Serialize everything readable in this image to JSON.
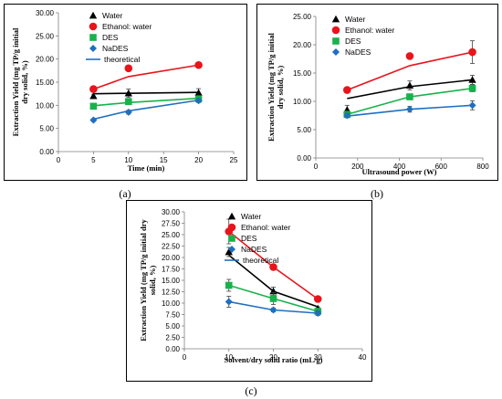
{
  "colors": {
    "water": "#000000",
    "ethanol": "#e8141b",
    "des": "#18b24b",
    "nades": "#1f6fbf",
    "theoretical": "#1f6fbf"
  },
  "chart_data": [
    {
      "type": "scatter",
      "panel_label": "(a)",
      "xlabel": "Time (min)",
      "ylabel_lines": [
        "Extraction Yield (mg TP/g  initial",
        "dry solid, %)"
      ],
      "xlim": [
        0,
        25
      ],
      "ylim": [
        0,
        30
      ],
      "xticks": [
        0,
        5,
        10,
        15,
        20,
        25
      ],
      "yticks": [
        0.0,
        5.0,
        10.0,
        15.0,
        20.0,
        25.0,
        30.0
      ],
      "xtick_labels": [
        "0",
        "5",
        "10",
        "15",
        "20",
        "25"
      ],
      "ytick_labels": [
        "0.00",
        "5.00",
        "10.00",
        "15.00",
        "20.00",
        "25.00",
        "30.00"
      ],
      "legend_position": "top-right",
      "series": [
        {
          "name": "Water",
          "key": "water",
          "marker": "triangle",
          "x": [
            5,
            10,
            20
          ],
          "y": [
            12.0,
            12.6,
            12.7
          ],
          "err": [
            0.4,
            0.9,
            0.9
          ]
        },
        {
          "name": "Ethanol: water",
          "key": "ethanol",
          "marker": "circle",
          "x": [
            5,
            10,
            20
          ],
          "y": [
            13.5,
            18.0,
            18.7
          ],
          "err": [
            0.3,
            0.6,
            0.4
          ]
        },
        {
          "name": "DES",
          "key": "des",
          "marker": "square",
          "x": [
            5,
            10,
            20
          ],
          "y": [
            9.8,
            10.8,
            11.4
          ],
          "err": [
            0.3,
            0.5,
            0.4
          ]
        },
        {
          "name": "NaDES",
          "key": "nades",
          "marker": "diamond",
          "x": [
            5,
            10,
            20
          ],
          "y": [
            6.8,
            8.5,
            11.0
          ],
          "err": [
            0.3,
            0.4,
            0.4
          ]
        }
      ],
      "lines": [
        {
          "key": "water",
          "x": [
            5,
            10,
            20
          ],
          "y": [
            12.5,
            12.6,
            12.8
          ]
        },
        {
          "key": "ethanol",
          "x": [
            5,
            10,
            20
          ],
          "y": [
            13.5,
            16.2,
            18.7
          ]
        },
        {
          "key": "des",
          "x": [
            5,
            10,
            20
          ],
          "y": [
            9.9,
            10.6,
            11.5
          ]
        },
        {
          "key": "nades",
          "x": [
            5,
            10,
            20
          ],
          "y": [
            7.0,
            8.8,
            11.1
          ]
        }
      ],
      "theoretical_legend": "theoretical"
    },
    {
      "type": "scatter",
      "panel_label": "(b)",
      "xlabel": "Ultrasound power (W)",
      "ylabel_lines": [
        "Extraction Yield (mg TP/g  initial",
        "dry solid, %)"
      ],
      "xlim": [
        0,
        800
      ],
      "ylim": [
        0,
        25
      ],
      "xticks": [
        0,
        200,
        400,
        600,
        800
      ],
      "yticks": [
        0.0,
        5.0,
        10.0,
        15.0,
        20.0,
        25.0
      ],
      "xtick_labels": [
        "0",
        "200",
        "400",
        "600",
        "800"
      ],
      "ytick_labels": [
        "0.00",
        "5.00",
        "10.00",
        "15.00",
        "20.00",
        "25.00"
      ],
      "legend_position": "top-right",
      "series": [
        {
          "name": "Water",
          "key": "water",
          "marker": "triangle",
          "x": [
            150,
            450,
            750
          ],
          "y": [
            8.5,
            12.8,
            13.8
          ],
          "err": [
            0.8,
            0.8,
            0.8
          ]
        },
        {
          "name": "Ethanol: water",
          "key": "ethanol",
          "marker": "circle",
          "x": [
            150,
            450,
            750
          ],
          "y": [
            12.0,
            18.0,
            18.7
          ],
          "err": [
            0.5,
            0.5,
            2.0
          ]
        },
        {
          "name": "DES",
          "key": "des",
          "marker": "square",
          "x": [
            150,
            450,
            750
          ],
          "y": [
            7.7,
            10.8,
            12.3
          ],
          "err": [
            0.4,
            0.5,
            0.6
          ]
        },
        {
          "name": "NaDES",
          "key": "nades",
          "marker": "diamond",
          "x": [
            150,
            450,
            750
          ],
          "y": [
            7.5,
            8.6,
            9.3
          ],
          "err": [
            0.4,
            0.5,
            0.8
          ]
        }
      ],
      "lines": [
        {
          "key": "water",
          "x": [
            150,
            450,
            750
          ],
          "y": [
            10.5,
            12.6,
            13.8
          ]
        },
        {
          "key": "ethanol",
          "x": [
            150,
            450,
            750
          ],
          "y": [
            12.0,
            16.3,
            18.7
          ]
        },
        {
          "key": "des",
          "x": [
            150,
            450,
            750
          ],
          "y": [
            7.7,
            10.8,
            12.3
          ]
        },
        {
          "key": "nades",
          "x": [
            150,
            450,
            750
          ],
          "y": [
            7.4,
            8.6,
            9.3
          ]
        }
      ],
      "theoretical_legend": ""
    },
    {
      "type": "scatter",
      "panel_label": "(c)",
      "xlabel": "Solvent/dry solid ratio (mL/g)",
      "ylabel_lines": [
        "Extraction Yield (mg TP/g  initial dry",
        "solid, %)"
      ],
      "xlim": [
        0,
        40
      ],
      "ylim": [
        0,
        30
      ],
      "xticks": [
        0,
        10,
        20,
        30,
        40
      ],
      "yticks": [
        0.0,
        2.5,
        5.0,
        7.5,
        10.0,
        12.5,
        15.0,
        17.5,
        20.0,
        22.5,
        25.0,
        27.5,
        30.0
      ],
      "xtick_labels": [
        "0",
        "10",
        "20",
        "30",
        "40"
      ],
      "ytick_labels": [
        "0.00",
        "2.50",
        "5.00",
        "7.50",
        "10.00",
        "12.50",
        "15.00",
        "17.50",
        "20.00",
        "22.50",
        "25.00",
        "27.50",
        "30.00"
      ],
      "legend_position": "top-right",
      "series": [
        {
          "name": "Water",
          "key": "water",
          "marker": "triangle",
          "x": [
            10,
            20,
            30
          ],
          "y": [
            21.2,
            12.6,
            8.8
          ],
          "err": [
            1.0,
            0.9,
            0.4
          ]
        },
        {
          "name": "Ethanol: water",
          "key": "ethanol",
          "marker": "circle",
          "x": [
            10,
            20,
            30
          ],
          "y": [
            25.7,
            17.9,
            10.9
          ],
          "err": [
            2.7,
            0.4,
            0.3
          ]
        },
        {
          "name": "DES",
          "key": "des",
          "marker": "square",
          "x": [
            10,
            20,
            30
          ],
          "y": [
            13.9,
            11.0,
            8.2
          ],
          "err": [
            1.3,
            1.3,
            0.4
          ]
        },
        {
          "name": "NaDES",
          "key": "nades",
          "marker": "diamond",
          "x": [
            10,
            20,
            30
          ],
          "y": [
            10.3,
            8.5,
            7.8
          ],
          "err": [
            1.2,
            0.4,
            0.5
          ]
        }
      ],
      "lines": [
        {
          "key": "water",
          "x": [
            10,
            20,
            30
          ],
          "y": [
            20.5,
            12.6,
            9.2
          ]
        },
        {
          "key": "ethanol",
          "x": [
            10,
            20,
            30
          ],
          "y": [
            25.7,
            17.9,
            10.9
          ]
        },
        {
          "key": "des",
          "x": [
            10,
            20,
            30
          ],
          "y": [
            13.9,
            11.0,
            8.2
          ]
        },
        {
          "key": "nades",
          "x": [
            10,
            20,
            30
          ],
          "y": [
            10.3,
            8.5,
            7.8
          ]
        }
      ],
      "theoretical_legend": "theoretical"
    }
  ]
}
